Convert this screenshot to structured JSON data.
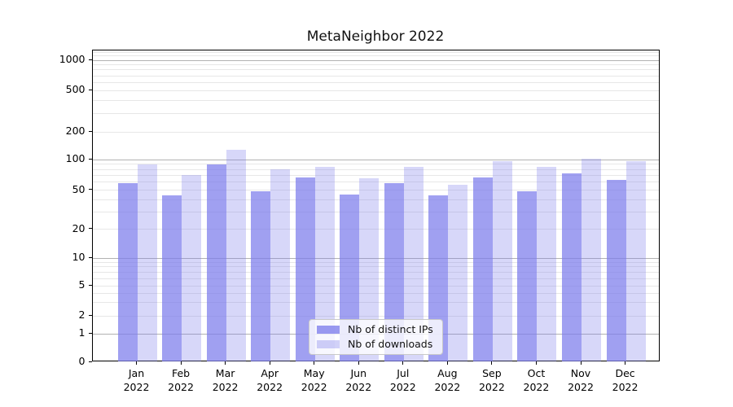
{
  "chart_data": {
    "type": "bar",
    "title": "MetaNeighbor 2022",
    "categories": [
      "Jan 2022",
      "Feb 2022",
      "Mar 2022",
      "Apr 2022",
      "May 2022",
      "Jun 2022",
      "Jul 2022",
      "Aug 2022",
      "Sep 2022",
      "Oct 2022",
      "Nov 2022",
      "Dec 2022"
    ],
    "series": [
      {
        "name": "Nb of distinct IPs",
        "values": [
          59,
          44,
          90,
          49,
          66,
          45,
          59,
          44,
          66,
          49,
          73,
          63
        ],
        "color": "#7b7beb",
        "opacity": 0.72
      },
      {
        "name": "Nb of downloads",
        "values": [
          90,
          70,
          128,
          80,
          84,
          65,
          85,
          56,
          97,
          84,
          103,
          97
        ],
        "color": "#7b7beb",
        "opacity": 0.3
      }
    ],
    "yscale": "symlog",
    "yticks": [
      0,
      1,
      2,
      5,
      10,
      20,
      50,
      100,
      200,
      500,
      1000
    ],
    "ylim": [
      0,
      1260
    ],
    "xlabel": "",
    "ylabel": "",
    "grid": true,
    "legend_position": "lower center",
    "axis_colors": {
      "spine": "#000000",
      "major_grid": "#b2b2b2",
      "minor_grid": "#e7e7e7"
    }
  }
}
